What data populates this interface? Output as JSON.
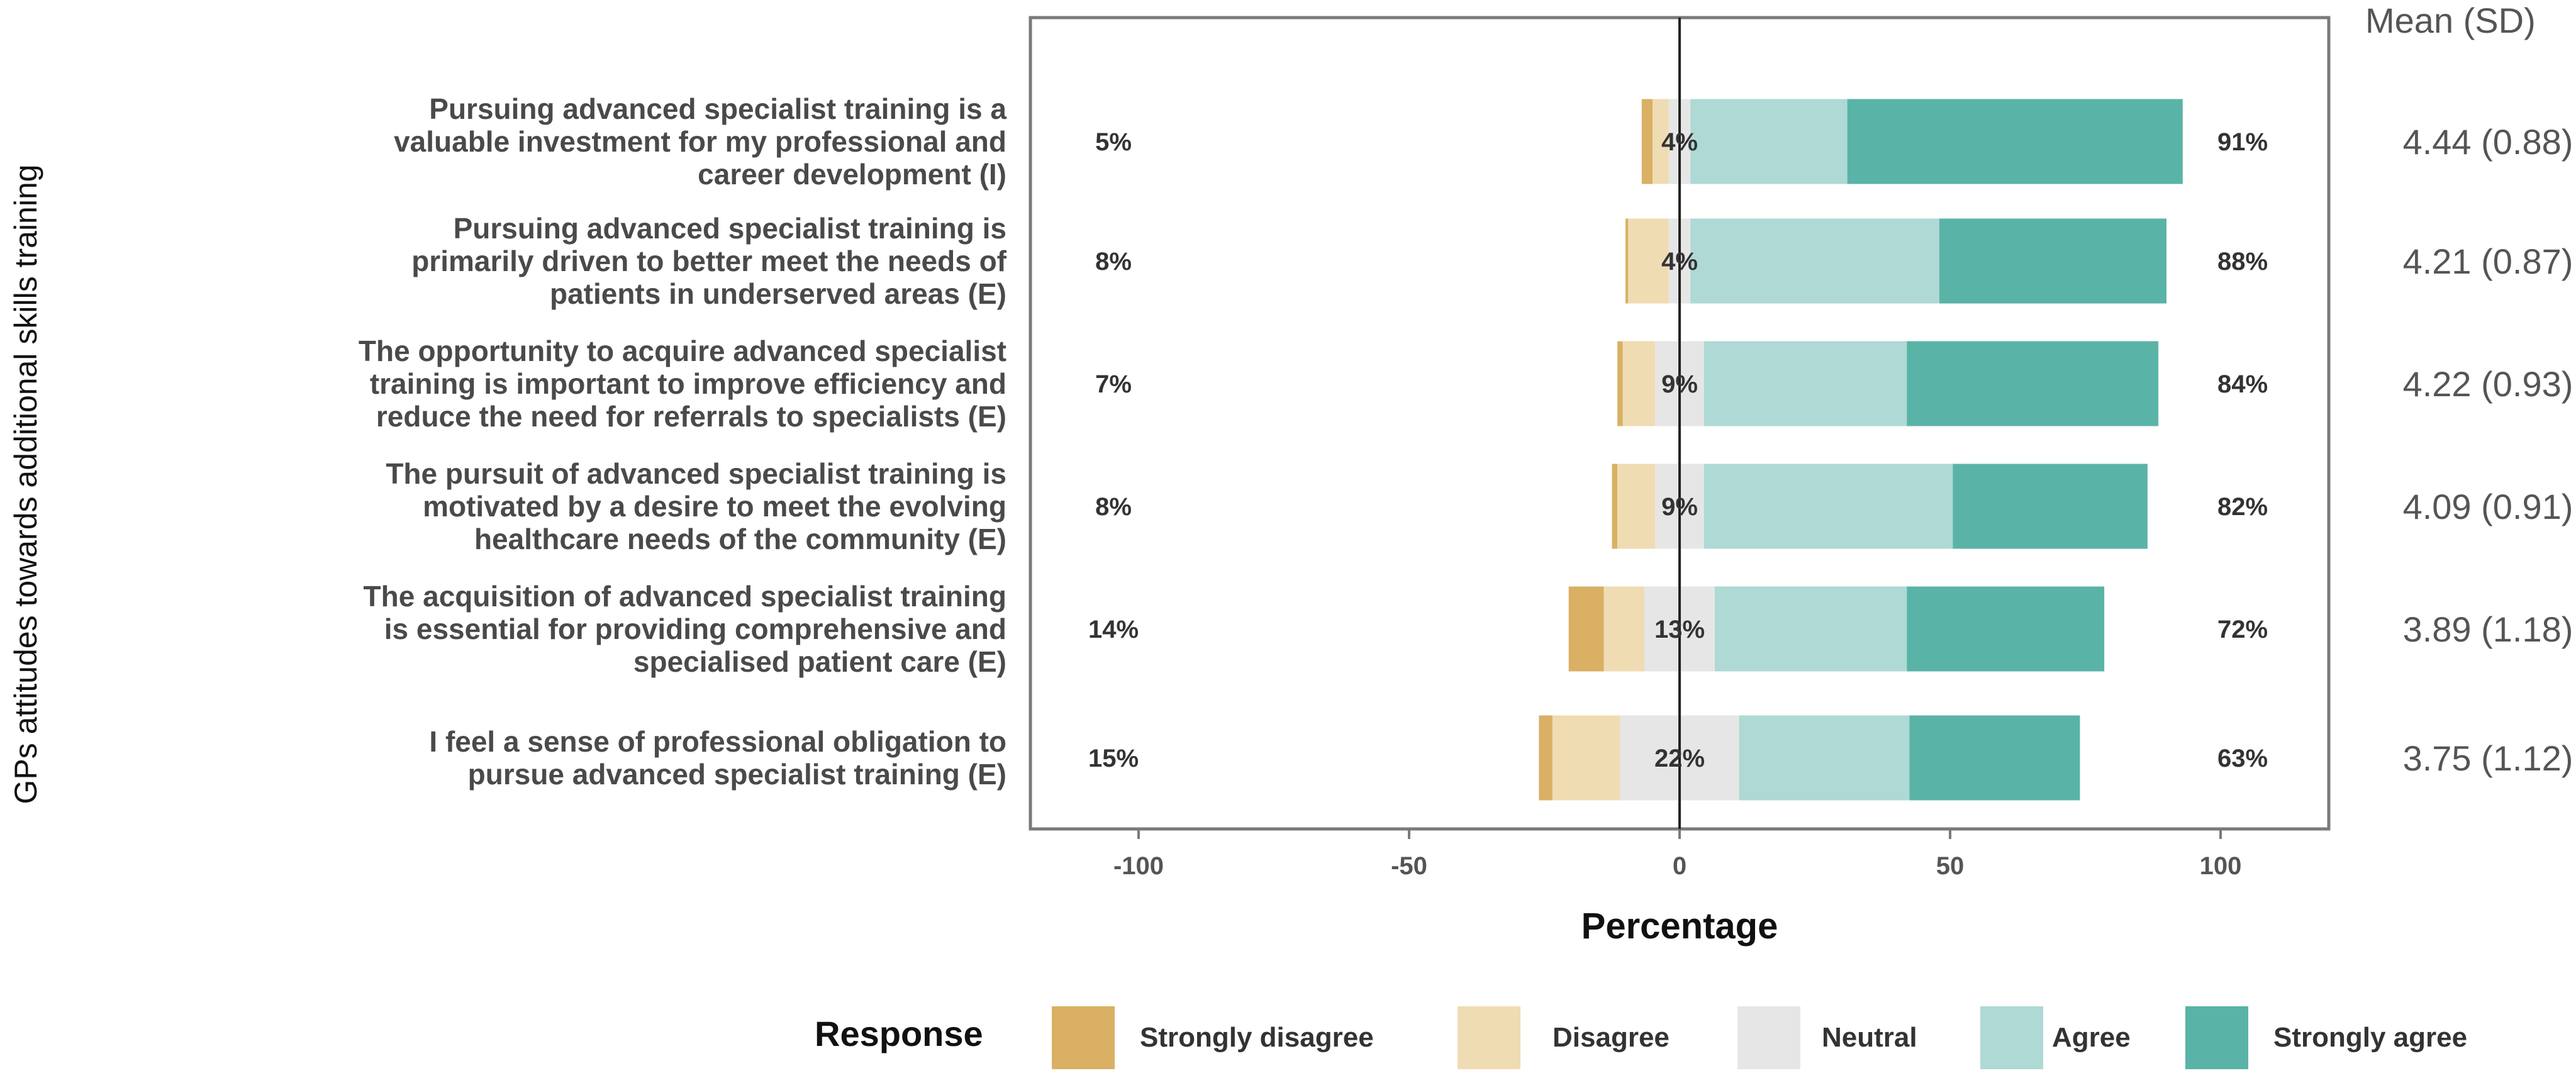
{
  "chart_data": {
    "type": "bar",
    "subtype": "diverging-stacked",
    "ylabel": "GPs attitudes towards additional skills training",
    "xlabel": "Percentage",
    "xlim": [
      -120,
      120
    ],
    "xticks": [
      -100,
      -50,
      0,
      50,
      100
    ],
    "xtick_labels": [
      "-100",
      "-50",
      "0",
      "50",
      "100"
    ],
    "mean_header": "Mean (SD)",
    "legend_title": "Response",
    "responses": [
      "Strongly disagree",
      "Disagree",
      "Neutral",
      "Agree",
      "Strongly agree"
    ],
    "colors": [
      "#d9b064",
      "#efdcb3",
      "#e6e6e6",
      "#aed9d4",
      "#5ab3a7"
    ],
    "items": [
      {
        "label_lines": [
          "Pursuing advanced specialist training is a",
          "valuable investment for my professional and",
          "career development (I)"
        ],
        "values": [
          2,
          3,
          4,
          29,
          62
        ],
        "low": "5%",
        "neutral": "4%",
        "high": "91%",
        "mean": "4.44 (0.88)"
      },
      {
        "label_lines": [
          "Pursuing advanced specialist training is",
          "primarily driven to better meet the needs of",
          "patients in underserved areas (E)"
        ],
        "values": [
          0.5,
          7.5,
          4,
          46,
          42
        ],
        "low": "8%",
        "neutral": "4%",
        "high": "88%",
        "mean": "4.21 (0.87)"
      },
      {
        "label_lines": [
          "The opportunity to acquire advanced specialist",
          "training is important to improve efficiency and",
          "reduce the need for referrals to specialists (E)"
        ],
        "values": [
          1,
          6,
          9,
          37.5,
          46.5
        ],
        "low": "7%",
        "neutral": "9%",
        "high": "84%",
        "mean": "4.22 (0.93)"
      },
      {
        "label_lines": [
          "The pursuit of advanced specialist training is",
          "motivated by a desire to meet the evolving",
          "healthcare needs of the community (E)"
        ],
        "values": [
          1,
          7,
          9,
          46,
          36
        ],
        "low": "8%",
        "neutral": "9%",
        "high": "82%",
        "mean": "4.09 (0.91)"
      },
      {
        "label_lines": [
          "The acquisition of advanced specialist training",
          "is essential for providing comprehensive and",
          "specialised patient care (E)"
        ],
        "values": [
          6.5,
          7.5,
          13,
          35.5,
          36.5
        ],
        "low": "14%",
        "neutral": "13%",
        "high": "72%",
        "mean": "3.89 (1.18)"
      },
      {
        "label_lines": [
          "I feel a sense of professional obligation to",
          "pursue advanced specialist training (E)"
        ],
        "values": [
          2.5,
          12.5,
          22,
          31.5,
          31.5
        ],
        "low": "15%",
        "neutral": "22%",
        "high": "63%",
        "mean": "3.75 (1.12)"
      }
    ]
  }
}
